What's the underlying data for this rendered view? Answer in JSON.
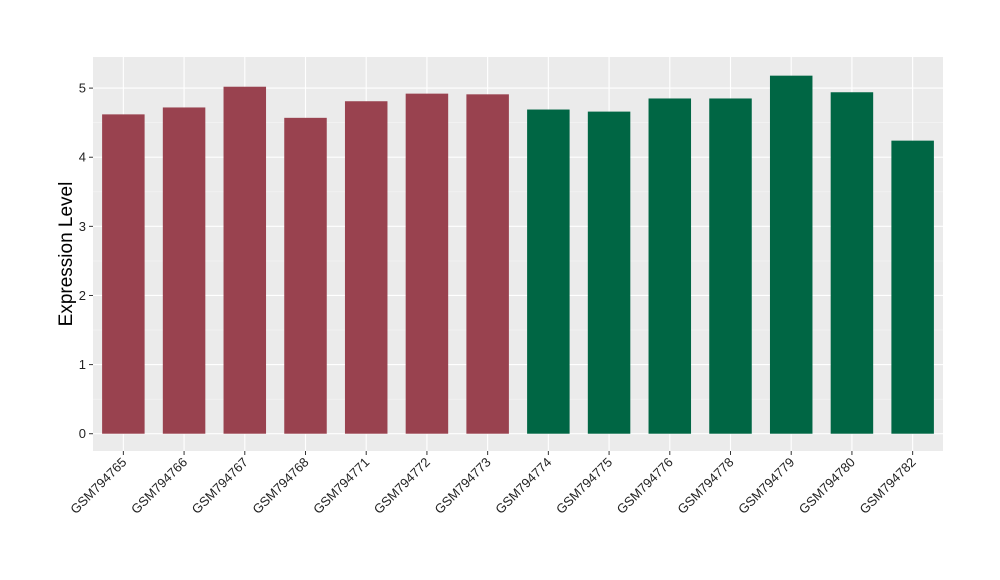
{
  "chart_data": {
    "type": "bar",
    "title": "",
    "xlabel": "",
    "ylabel": "Expression Level",
    "ylim": [
      -0.25,
      5.45
    ],
    "yticks": [
      0,
      1,
      2,
      3,
      4,
      5
    ],
    "grid": true,
    "legend": "none",
    "categories": [
      "GSM794765",
      "GSM794766",
      "GSM794767",
      "GSM794768",
      "GSM794771",
      "GSM794772",
      "GSM794773",
      "GSM794774",
      "GSM794775",
      "GSM794776",
      "GSM794778",
      "GSM794779",
      "GSM794780",
      "GSM794782"
    ],
    "values": [
      4.62,
      4.72,
      5.02,
      4.57,
      4.81,
      4.92,
      4.91,
      4.69,
      4.66,
      4.85,
      4.85,
      5.18,
      4.94,
      4.24
    ],
    "bar_colors": [
      "#99424F",
      "#99424F",
      "#99424F",
      "#99424F",
      "#99424F",
      "#99424F",
      "#99424F",
      "#006644",
      "#006644",
      "#006644",
      "#006644",
      "#006644",
      "#006644",
      "#006644"
    ]
  },
  "colors": {
    "panel_background": "#EBEBEB",
    "grid_major": "#FFFFFF",
    "grid_minor": "#F5F5F5",
    "axis_tick": "#333333",
    "group_a": "#99424F",
    "group_b": "#006644"
  }
}
